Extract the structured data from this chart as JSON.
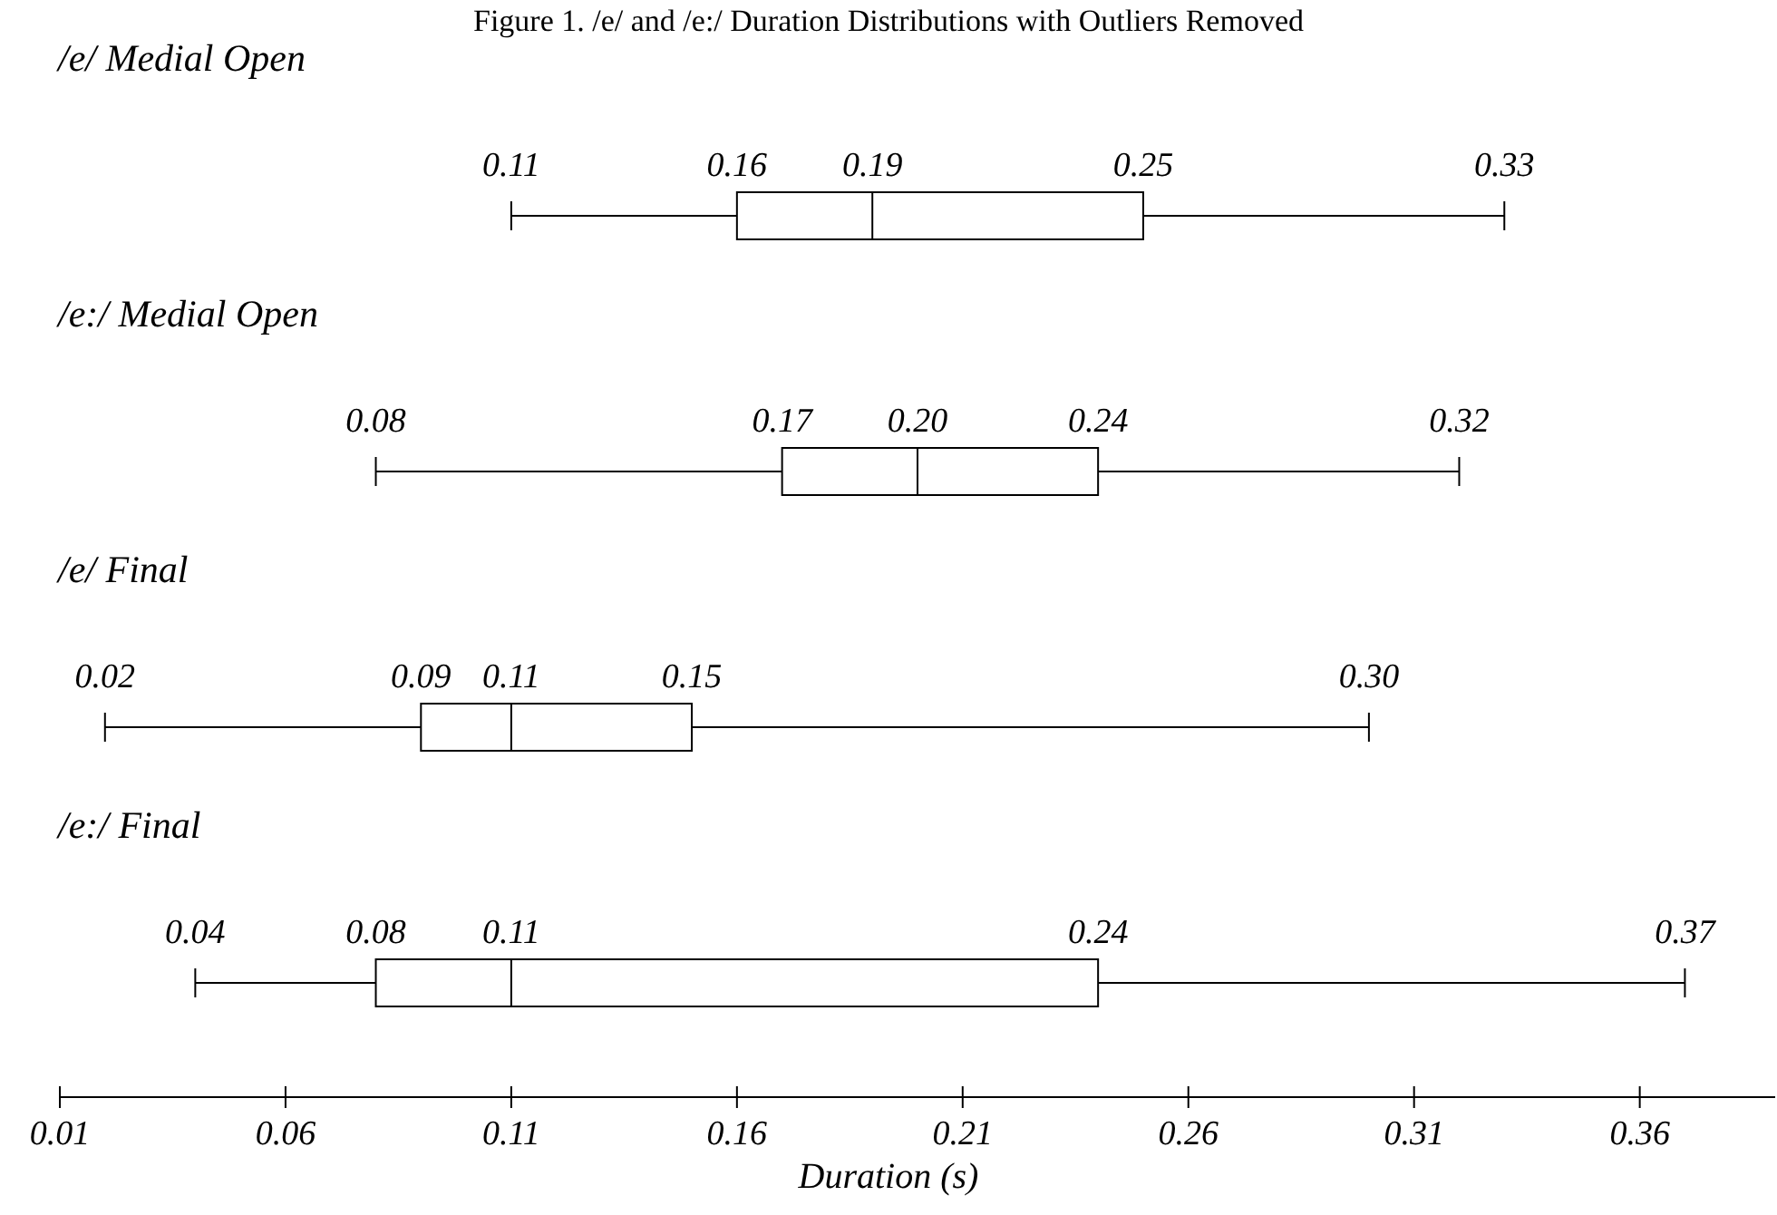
{
  "chart_data": {
    "type": "box",
    "title": "Figure 1. /e/ and /e:/ Duration Distributions with Outliers Removed",
    "orientation": "horizontal",
    "categories": [
      "/e/ Medial Open",
      "/e:/ Medial Open",
      "/e/ Final",
      "/e:/ Final"
    ],
    "boxes": [
      {
        "low": 0.11,
        "q1": 0.16,
        "median": 0.19,
        "q3": 0.25,
        "high": 0.33
      },
      {
        "low": 0.08,
        "q1": 0.17,
        "median": 0.2,
        "q3": 0.24,
        "high": 0.32
      },
      {
        "low": 0.02,
        "q1": 0.09,
        "median": 0.11,
        "q3": 0.15,
        "high": 0.3
      },
      {
        "low": 0.04,
        "q1": 0.08,
        "median": 0.11,
        "q3": 0.24,
        "high": 0.37
      }
    ],
    "xlim": [
      0.01,
      0.39
    ],
    "xticks": [
      0.01,
      0.06,
      0.11,
      0.16,
      0.21,
      0.26,
      0.31,
      0.36
    ],
    "xlabel": "Duration (s)",
    "value_labels": [
      [
        "0.11",
        "0.16",
        "0.19",
        "0.25",
        "0.33"
      ],
      [
        "0.08",
        "0.17",
        "0.20",
        "0.24",
        "0.32"
      ],
      [
        "0.02",
        "0.09",
        "0.11",
        "0.15",
        "0.30"
      ],
      [
        "0.04",
        "0.08",
        "0.11",
        "0.24",
        "0.37"
      ]
    ],
    "color": "#000000"
  }
}
